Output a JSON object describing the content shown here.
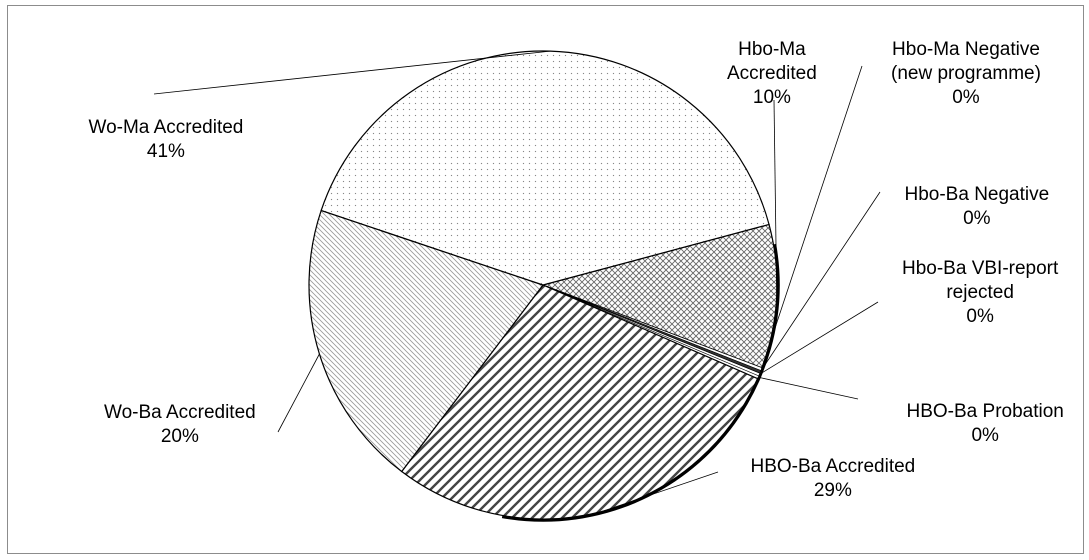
{
  "chart_data": {
    "type": "pie",
    "slices": [
      {
        "name": "Hbo-Ma Accredited",
        "label_lines": [
          "Hbo-Ma",
          "Accredited"
        ],
        "value": 10,
        "pct_label": "10%",
        "pattern": "crosshatch"
      },
      {
        "name": "Hbo-Ma Negative (new programme)",
        "label_lines": [
          "Hbo-Ma Negative",
          "(new programme)"
        ],
        "value": 0.2,
        "pct_label": "0%",
        "pattern": "solid-light"
      },
      {
        "name": "Hbo-Ba Negative",
        "label_lines": [
          "Hbo-Ba Negative"
        ],
        "value": 0.2,
        "pct_label": "0%",
        "pattern": "solid-dark"
      },
      {
        "name": "Hbo-Ba VBI-report rejected",
        "label_lines": [
          "Hbo-Ba VBI-report",
          "rejected"
        ],
        "value": 0.2,
        "pct_label": "0%",
        "pattern": "solid-light"
      },
      {
        "name": "HBO-Ba Probation",
        "label_lines": [
          "HBO-Ba Probation"
        ],
        "value": 0.2,
        "pct_label": "0%",
        "pattern": "solid-light"
      },
      {
        "name": "HBO-Ba Accredited",
        "label_lines": [
          "HBO-Ba Accredited"
        ],
        "value": 29,
        "pct_label": "29%",
        "pattern": "wide-diagonal"
      },
      {
        "name": "Wo-Ba Accredited",
        "label_lines": [
          "Wo-Ba Accredited"
        ],
        "value": 20,
        "pct_label": "20%",
        "pattern": "fine-diagonal"
      },
      {
        "name": "Wo-Ma Accredited",
        "label_lines": [
          "Wo-Ma Accredited"
        ],
        "value": 41,
        "pct_label": "41%",
        "pattern": "dots"
      }
    ],
    "start_angle_deg": -15,
    "direction": "clockwise",
    "legend": "none",
    "colors": {
      "outline": "#000000",
      "frame": "#8c8c8c",
      "pattern": "#555555"
    }
  }
}
